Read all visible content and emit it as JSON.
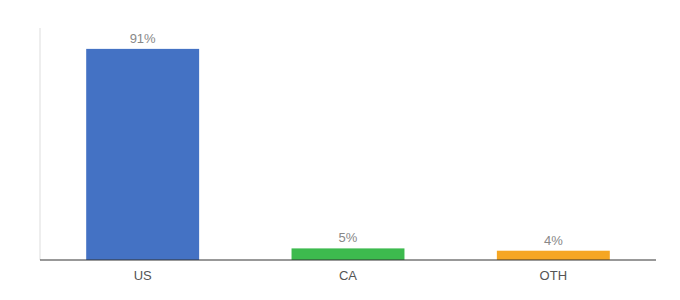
{
  "chart_data": {
    "type": "bar",
    "categories": [
      "US",
      "CA",
      "OTH"
    ],
    "values": [
      91,
      5,
      4
    ],
    "value_labels": [
      "91%",
      "5%",
      "4%"
    ],
    "colors": [
      "#4472c4",
      "#3dba4e",
      "#f5a623"
    ],
    "data_labels": true,
    "ylim": [
      0,
      100
    ],
    "tick_labels": "x",
    "grid": false
  }
}
